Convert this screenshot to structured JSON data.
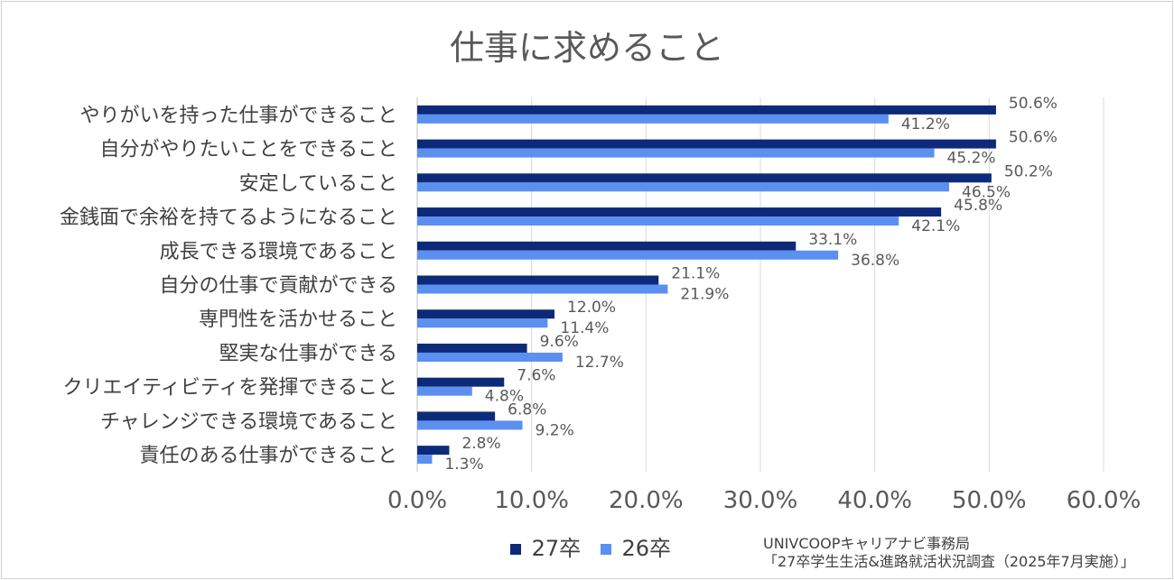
{
  "chart_data": {
    "type": "bar",
    "orientation": "horizontal",
    "title": "仕事に求めること",
    "categories": [
      "やりがいを持った仕事ができること",
      "自分がやりたいことをできること",
      "安定していること",
      "金銭面で余裕を持てるようになること",
      "成長できる環境であること",
      "自分の仕事で貢献ができる",
      "専門性を活かせること",
      "堅実な仕事ができる",
      "クリエイティビティを発揮できること",
      "チャレンジできる環境であること",
      "責任のある仕事ができること"
    ],
    "series": [
      {
        "name": "27卒",
        "color": "#0d2a7a",
        "values": [
          50.6,
          50.6,
          50.2,
          45.8,
          33.1,
          21.1,
          12.0,
          9.6,
          7.6,
          6.8,
          2.8
        ],
        "labels": [
          "50.6%",
          "50.6%",
          "50.2%",
          "45.8%",
          "33.1%",
          "21.1%",
          "12.0%",
          "9.6%",
          "7.6%",
          "6.8%",
          "2.8%"
        ]
      },
      {
        "name": "26卒",
        "color": "#5b8ff0",
        "values": [
          41.2,
          45.2,
          46.5,
          42.1,
          36.8,
          21.9,
          11.4,
          12.7,
          4.8,
          9.2,
          1.3
        ],
        "labels": [
          "41.2%",
          "45.2%",
          "46.5%",
          "42.1%",
          "36.8%",
          "21.9%",
          "11.4%",
          "12.7%",
          "4.8%",
          "9.2%",
          "1.3%"
        ]
      }
    ],
    "xlim": [
      0,
      60
    ],
    "xticks": [
      "0.0%",
      "10.0%",
      "20.0%",
      "30.0%",
      "40.0%",
      "50.0%",
      "60.0%"
    ],
    "grid": true,
    "legend_position": "bottom"
  },
  "source": {
    "line1": "UNIVCOOPキャリアナビ事務局",
    "line2": "「27卒学生生活&進路就活状況調査（2025年7月実施）」"
  }
}
